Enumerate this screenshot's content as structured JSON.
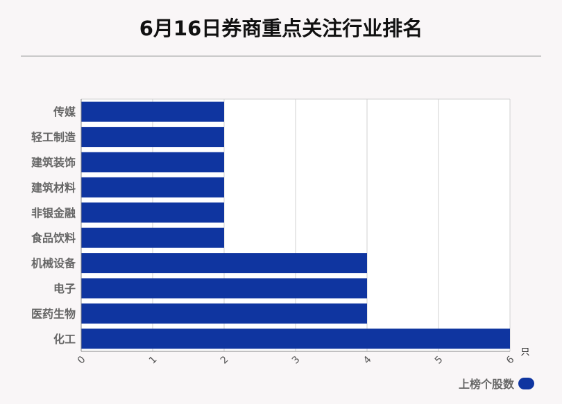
{
  "title": "6月16日券商重点关注行业排名",
  "chart_data": {
    "type": "bar",
    "orientation": "horizontal",
    "categories": [
      "传媒",
      "轻工制造",
      "建筑装饰",
      "建筑材料",
      "非银金融",
      "食品饮料",
      "机械设备",
      "电子",
      "医药生物",
      "化工"
    ],
    "series": [
      {
        "name": "上榜个股数",
        "values": [
          2,
          2,
          2,
          2,
          2,
          2,
          4,
          4,
          4,
          6
        ],
        "color": "#0f35a0"
      }
    ],
    "xlim": [
      0,
      6
    ],
    "x_ticks": [
      "0",
      "1",
      "2",
      "3",
      "4",
      "5",
      "6"
    ],
    "x_unit": "只",
    "grid": true,
    "legend_position": "bottom-right"
  }
}
